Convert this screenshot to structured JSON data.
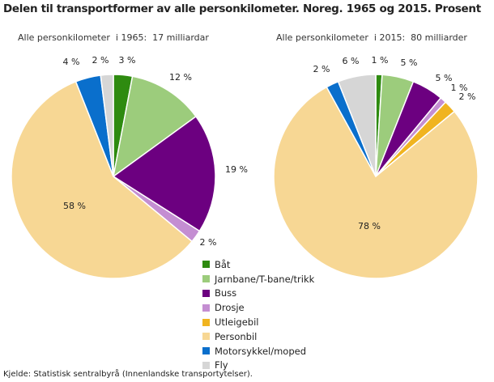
{
  "title": "Delen til transportformer av alle personkilometer. Noreg. 1965 og 2015. Prosent",
  "source": "Kjelde: Statistisk sentralbyrå (Innenlandske transportytelser).",
  "chart_data": [
    {
      "type": "pie",
      "subtitle": "Alle personkilometer  i 1965:  17 milliardar",
      "categories": [
        "Båt",
        "Jarnbane/T-bane/trikk",
        "Buss",
        "Drosje",
        "Utleigebil",
        "Personbil",
        "Motorsykkel/moped",
        "Fly"
      ],
      "values": [
        3,
        12,
        19,
        2,
        0,
        58,
        4,
        2
      ],
      "labels": [
        "3 %",
        "12 %",
        "19 %",
        "2 %",
        "",
        "58 %",
        "4 %",
        "2 %"
      ],
      "colors": [
        "#2e8b10",
        "#9ccc7c",
        "#6c0080",
        "#c48ed2",
        "#f0b420",
        "#f7d794",
        "#0a6fcc",
        "#d6d6d6"
      ]
    },
    {
      "type": "pie",
      "subtitle": "Alle personkilometer  i 2015:  80 milliarder",
      "categories": [
        "Båt",
        "Jarnbane/T-bane/trikk",
        "Buss",
        "Drosje",
        "Utleigebil",
        "Personbil",
        "Motorsykkel/moped",
        "Fly"
      ],
      "values": [
        1,
        5,
        5,
        1,
        2,
        78,
        2,
        6
      ],
      "labels": [
        "1 %",
        "5 %",
        "5 %",
        "1 %",
        "2 %",
        "78 %",
        "2 %",
        "6 %"
      ],
      "colors": [
        "#2e8b10",
        "#9ccc7c",
        "#6c0080",
        "#c48ed2",
        "#f0b420",
        "#f7d794",
        "#0a6fcc",
        "#d6d6d6"
      ]
    }
  ],
  "legend": [
    {
      "label": "Båt",
      "color": "#2e8b10"
    },
    {
      "label": "Jarnbane/T-bane/trikk",
      "color": "#9ccc7c"
    },
    {
      "label": "Buss",
      "color": "#6c0080"
    },
    {
      "label": "Drosje",
      "color": "#c48ed2"
    },
    {
      "label": "Utleigebil",
      "color": "#f0b420"
    },
    {
      "label": "Personbil",
      "color": "#f7d794"
    },
    {
      "label": "Motorsykkel/moped",
      "color": "#0a6fcc"
    },
    {
      "label": "Fly",
      "color": "#d6d6d6"
    }
  ]
}
